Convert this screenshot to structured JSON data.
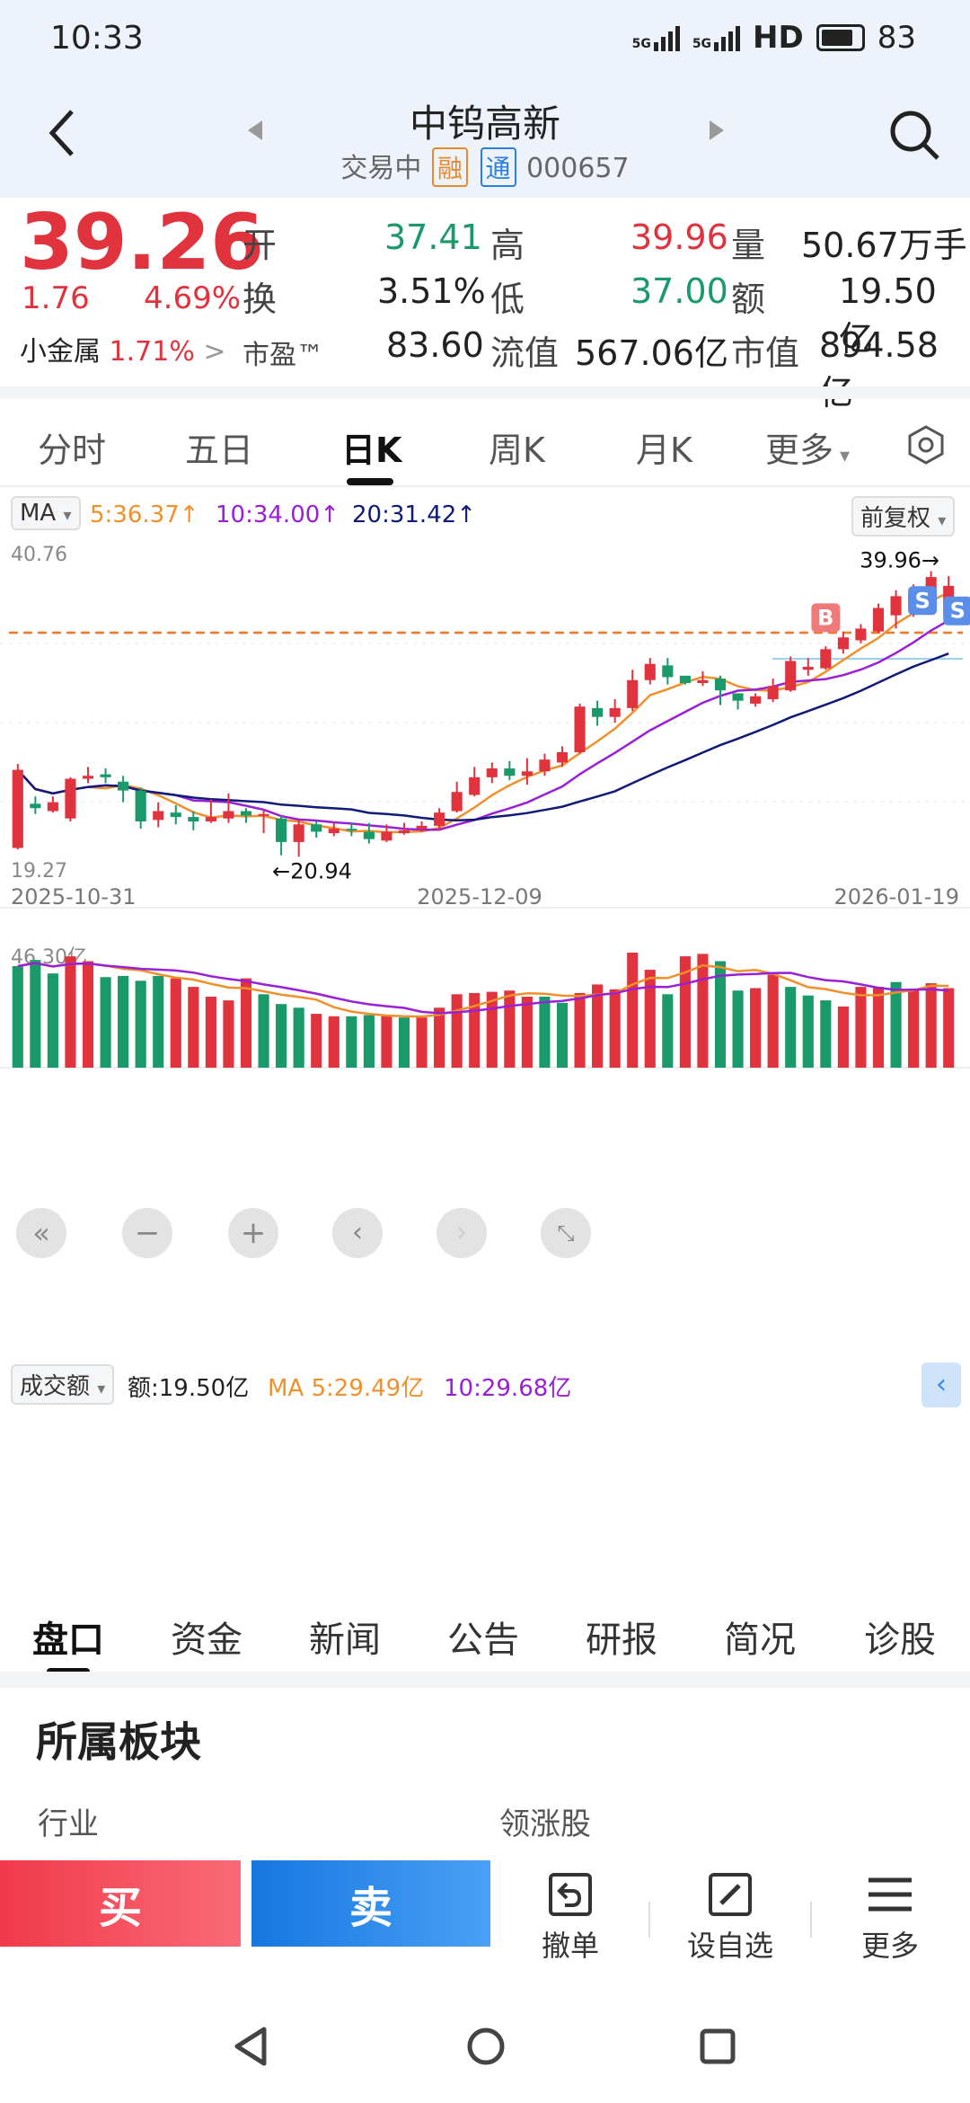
{
  "status": {
    "time": "10:33",
    "net1": "5G",
    "net2": "5G",
    "hd": "HD",
    "battery": "83"
  },
  "header": {
    "title": "中钨高新",
    "status": "交易中",
    "tag_rong": "融",
    "tag_tong": "通",
    "code": "000657"
  },
  "quote": {
    "price": "39.26",
    "change": "1.76",
    "change_pct": "4.69%",
    "sector_label": "小金属",
    "sector_pct": "1.71%",
    "open_label": "开",
    "open": "37.41",
    "high_label": "高",
    "high": "39.96",
    "vol_label": "量",
    "vol": "50.67万手",
    "turn_label": "换",
    "turn": "3.51%",
    "low_label": "低",
    "low": "37.00",
    "amt_label": "额",
    "amt": "19.50亿",
    "pe_label": "市盈™",
    "pe": "83.60",
    "float_label": "流值",
    "float": "567.06亿",
    "mcap_label": "市值",
    "mcap": "894.58亿"
  },
  "tabs": [
    "分时",
    "五日",
    "日K",
    "周K",
    "月K",
    "更多"
  ],
  "ma_bar": {
    "label": "MA",
    "ma5": "5:36.37↑",
    "ma10": "10:34.00↑",
    "ma20": "20:31.42↑",
    "adjust": "前复权"
  },
  "colors": {
    "up": "#e0333d",
    "down": "#1a9a6a",
    "ma5": "#f0902a",
    "ma10": "#9a1fd6",
    "ma20": "#101a78"
  },
  "chart_data": {
    "type": "candlestick",
    "ylim": [
      19.27,
      40.76
    ],
    "x_ticks": [
      "2025-10-31",
      "2025-12-09",
      "2026-01-19"
    ],
    "annotations": {
      "max": "39.96",
      "min": "20.94",
      "y_top": "40.76",
      "y_bottom": "19.27"
    },
    "candles": [
      [
        21.5,
        26.8,
        27.2,
        21.4
      ],
      [
        24.5,
        24.2,
        25.0,
        23.8
      ],
      [
        24.0,
        24.6,
        25.0,
        23.9
      ],
      [
        23.5,
        26.2,
        26.3,
        23.3
      ],
      [
        26.2,
        26.4,
        27.0,
        25.9
      ],
      [
        26.5,
        26.3,
        26.9,
        25.9
      ],
      [
        26.0,
        25.4,
        26.4,
        24.6
      ],
      [
        25.4,
        23.3,
        25.6,
        22.8
      ],
      [
        23.4,
        24.0,
        24.6,
        22.9
      ],
      [
        23.9,
        23.6,
        24.4,
        23.1
      ],
      [
        23.6,
        23.3,
        24.0,
        22.7
      ],
      [
        23.3,
        23.6,
        24.8,
        23.2
      ],
      [
        23.5,
        24.0,
        25.2,
        23.2
      ],
      [
        24.0,
        23.7,
        24.2,
        23.2
      ],
      [
        23.7,
        23.8,
        24.1,
        22.5
      ],
      [
        23.5,
        21.9,
        23.7,
        21.0
      ],
      [
        21.9,
        23.1,
        23.4,
        20.9
      ],
      [
        23.1,
        22.6,
        23.3,
        22.2
      ],
      [
        22.5,
        22.8,
        23.2,
        22.3
      ],
      [
        22.8,
        22.7,
        23.2,
        22.3
      ],
      [
        22.6,
        22.1,
        23.2,
        21.8
      ],
      [
        22.0,
        22.6,
        23.1,
        21.9
      ],
      [
        22.5,
        22.7,
        23.2,
        22.4
      ],
      [
        22.8,
        23.0,
        23.3,
        22.6
      ],
      [
        23.0,
        23.9,
        24.2,
        22.7
      ],
      [
        24.0,
        25.3,
        26.0,
        23.9
      ],
      [
        25.1,
        26.3,
        27.0,
        25.0
      ],
      [
        26.3,
        26.9,
        27.3,
        25.9
      ],
      [
        26.9,
        26.4,
        27.4,
        26.1
      ],
      [
        26.4,
        26.7,
        27.6,
        25.8
      ],
      [
        26.7,
        27.5,
        27.9,
        26.4
      ],
      [
        27.3,
        28.0,
        28.4,
        27.0
      ],
      [
        28.0,
        31.1,
        31.3,
        27.9
      ],
      [
        31.0,
        30.4,
        31.5,
        29.8
      ],
      [
        30.4,
        31.0,
        31.6,
        30.0
      ],
      [
        31.0,
        32.9,
        33.6,
        30.8
      ],
      [
        32.9,
        34.0,
        34.4,
        32.6
      ],
      [
        33.9,
        33.1,
        34.4,
        32.6
      ],
      [
        33.2,
        32.7,
        33.1,
        32.6
      ],
      [
        32.7,
        32.9,
        33.5,
        32.5
      ],
      [
        33.0,
        32.2,
        33.2,
        31.2
      ],
      [
        32.0,
        31.5,
        32.0,
        30.9
      ],
      [
        31.3,
        31.8,
        32.0,
        31.1
      ],
      [
        31.6,
        32.5,
        33.0,
        31.4
      ],
      [
        32.2,
        34.2,
        34.5,
        32.1
      ],
      [
        33.6,
        33.8,
        34.4,
        33.2
      ],
      [
        33.7,
        35.0,
        35.2,
        33.6
      ],
      [
        35.0,
        35.8,
        36.2,
        34.7
      ],
      [
        35.6,
        36.4,
        36.7,
        35.4
      ],
      [
        36.2,
        37.8,
        38.1,
        36.1
      ],
      [
        37.3,
        38.6,
        39.0,
        36.4
      ],
      [
        38.0,
        38.7,
        39.4,
        37.2
      ],
      [
        38.5,
        39.9,
        40.3,
        37.6
      ],
      [
        37.4,
        39.3,
        39.96,
        37.0
      ]
    ],
    "volume_ticks": [
      "46.30亿"
    ],
    "volume": [
      [
        41.5,
        0
      ],
      [
        44.0,
        0
      ],
      [
        38.5,
        0
      ],
      [
        45.5,
        1
      ],
      [
        43.5,
        1
      ],
      [
        37.0,
        0
      ],
      [
        37.5,
        0
      ],
      [
        35.5,
        0
      ],
      [
        37.5,
        0
      ],
      [
        36.5,
        1
      ],
      [
        33.0,
        1
      ],
      [
        29.0,
        1
      ],
      [
        27.5,
        1
      ],
      [
        36.5,
        1
      ],
      [
        30.0,
        0
      ],
      [
        26.0,
        0
      ],
      [
        24.5,
        0
      ],
      [
        22.0,
        1
      ],
      [
        21.0,
        1
      ],
      [
        21.0,
        0
      ],
      [
        21.5,
        0
      ],
      [
        21.0,
        1
      ],
      [
        20.5,
        0
      ],
      [
        20.5,
        1
      ],
      [
        24.5,
        1
      ],
      [
        30.0,
        1
      ],
      [
        30.5,
        1
      ],
      [
        31.0,
        1
      ],
      [
        31.5,
        1
      ],
      [
        29.0,
        1
      ],
      [
        29.0,
        0
      ],
      [
        26.5,
        0
      ],
      [
        30.5,
        1
      ],
      [
        34.0,
        1
      ],
      [
        32.0,
        1
      ],
      [
        47.0,
        1
      ],
      [
        40.0,
        1
      ],
      [
        30.0,
        0
      ],
      [
        45.5,
        1
      ],
      [
        46.5,
        1
      ],
      [
        43.5,
        0
      ],
      [
        31.5,
        0
      ],
      [
        32.5,
        1
      ],
      [
        38.0,
        1
      ],
      [
        33.0,
        0
      ],
      [
        29.5,
        0
      ],
      [
        27.5,
        0
      ],
      [
        25.0,
        1
      ],
      [
        33.0,
        1
      ],
      [
        33.0,
        1
      ],
      [
        35.0,
        0
      ],
      [
        32.0,
        1
      ],
      [
        34.5,
        1
      ],
      [
        32.5,
        1
      ]
    ],
    "volume_max": 47.0,
    "volume_ma_bar": {
      "label": "成交额",
      "amt": "额:19.50亿",
      "ma5": "MA 5:29.49亿",
      "ma10": "10:29.68亿"
    }
  },
  "info_tabs": [
    "盘口",
    "资金",
    "新闻",
    "公告",
    "研报",
    "简况",
    "诊股"
  ],
  "panel": {
    "title": "所属板块",
    "col1": "行业",
    "col2": "领涨股"
  },
  "trade": {
    "buy": "买",
    "sell": "卖",
    "cancel": "撤单",
    "watch": "设自选",
    "more": "更多"
  }
}
